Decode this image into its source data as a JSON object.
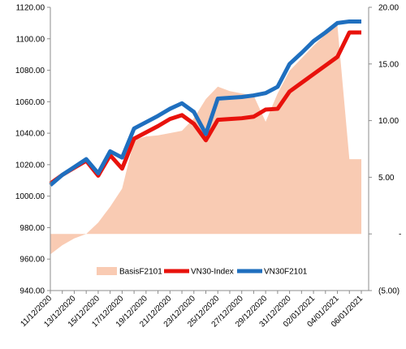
{
  "chart_data": {
    "type": "line",
    "title": "",
    "xlabel": "",
    "ylabel": "",
    "x": [
      "11/12/2020",
      "12/12/2020",
      "13/12/2020",
      "14/12/2020",
      "15/12/2020",
      "16/12/2020",
      "17/12/2020",
      "18/12/2020",
      "19/12/2020",
      "20/12/2020",
      "21/12/2020",
      "22/12/2020",
      "23/12/2020",
      "24/12/2020",
      "25/12/2020",
      "26/12/2020",
      "27/12/2020",
      "28/12/2020",
      "29/12/2020",
      "30/12/2020",
      "31/12/2020",
      "01/01/2021",
      "02/01/2021",
      "03/01/2021",
      "04/01/2021",
      "05/01/2021",
      "06/01/2021"
    ],
    "x_tick_labels": [
      "11/12/2020",
      "13/12/2020",
      "15/12/2020",
      "17/12/2020",
      "19/12/2020",
      "21/12/2020",
      "23/12/2020",
      "25/12/2020",
      "27/12/2020",
      "29/12/2020",
      "31/12/2020",
      "02/01/2021",
      "04/01/2021",
      "06/01/2021"
    ],
    "left_axis": {
      "ylim": [
        940,
        1120
      ],
      "ticks": [
        "940.00",
        "960.00",
        "980.00",
        "1000.00",
        "1020.00",
        "1040.00",
        "1060.00",
        "1080.00",
        "1100.00",
        "1120.00"
      ],
      "tick_values": [
        940,
        960,
        980,
        1000,
        1020,
        1040,
        1060,
        1080,
        1100,
        1120
      ]
    },
    "right_axis": {
      "ylim": [
        -5,
        20
      ],
      "ticks": [
        "(5.00)",
        "-",
        "5.00",
        "10.00",
        "15.00",
        "20.00"
      ],
      "tick_values": [
        -5,
        0,
        5,
        10,
        15,
        20
      ]
    },
    "series": [
      {
        "name": "BasisF2101",
        "type": "area",
        "axis": "right",
        "color": "#f9cbb3",
        "values": [
          -1.8,
          -1.0,
          -0.4,
          0.0,
          1.0,
          2.4,
          4.0,
          8.3,
          8.6,
          8.7,
          8.9,
          9.1,
          10.2,
          11.9,
          13.0,
          12.6,
          12.4,
          12.2,
          9.9,
          12.4,
          14.4,
          15.5,
          16.6,
          17.6,
          18.4,
          6.6,
          6.6
        ]
      },
      {
        "name": "VN30-Index",
        "type": "line",
        "axis": "left",
        "color": "#e8120c",
        "values": [
          1008.0,
          1013.5,
          1018.0,
          1022.5,
          1013.0,
          1026.0,
          1017.5,
          1036.5,
          1040.5,
          1044.5,
          1049.0,
          1051.5,
          1046.0,
          1035.5,
          1048.5,
          1049.0,
          1049.5,
          1050.5,
          1055.0,
          1055.5,
          1066.5,
          1072.0,
          1077.5,
          1083.0,
          1088.5,
          1104.0,
          1104.0
        ]
      },
      {
        "name": "VN30F2101",
        "type": "line",
        "axis": "left",
        "color": "#1f6fbf",
        "values": [
          1007.0,
          1013.5,
          1018.5,
          1023.5,
          1014.5,
          1028.5,
          1024.5,
          1043.0,
          1047.0,
          1051.0,
          1055.5,
          1059.0,
          1053.5,
          1039.5,
          1062.0,
          1062.5,
          1063.0,
          1064.0,
          1065.5,
          1069.5,
          1084.0,
          1091.0,
          1098.5,
          1104.0,
          1110.0,
          1111.0,
          1111.0
        ]
      }
    ],
    "grid": false,
    "legend_position": "bottom"
  }
}
